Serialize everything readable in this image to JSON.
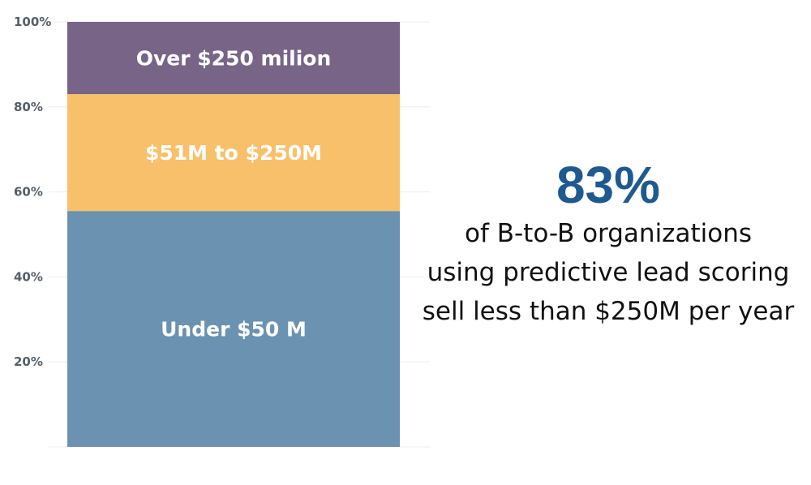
{
  "chart_data": {
    "type": "bar",
    "stacked": true,
    "categories": [
      ""
    ],
    "series": [
      {
        "name": "Under $50 M",
        "values": [
          55.5
        ],
        "color": "#6b92b0"
      },
      {
        "name": "$51M to $250M",
        "values": [
          27.5
        ],
        "color": "#f8c06a"
      },
      {
        "name": "Over $250 milion",
        "values": [
          17
        ],
        "color": "#776487"
      }
    ],
    "ylim": [
      0,
      100
    ],
    "yticks": [
      {
        "value": 20,
        "label": "20%"
      },
      {
        "value": 40,
        "label": "40%"
      },
      {
        "value": 60,
        "label": "60%"
      },
      {
        "value": 80,
        "label": "80%"
      },
      {
        "value": 100,
        "label": "100%"
      }
    ],
    "grid": true,
    "xlabel": "",
    "ylabel": ""
  },
  "callout": {
    "stat": "83%",
    "lines": [
      "of B-to-B organizations",
      "using predictive lead scoring",
      "sell less than $250M per year"
    ]
  }
}
